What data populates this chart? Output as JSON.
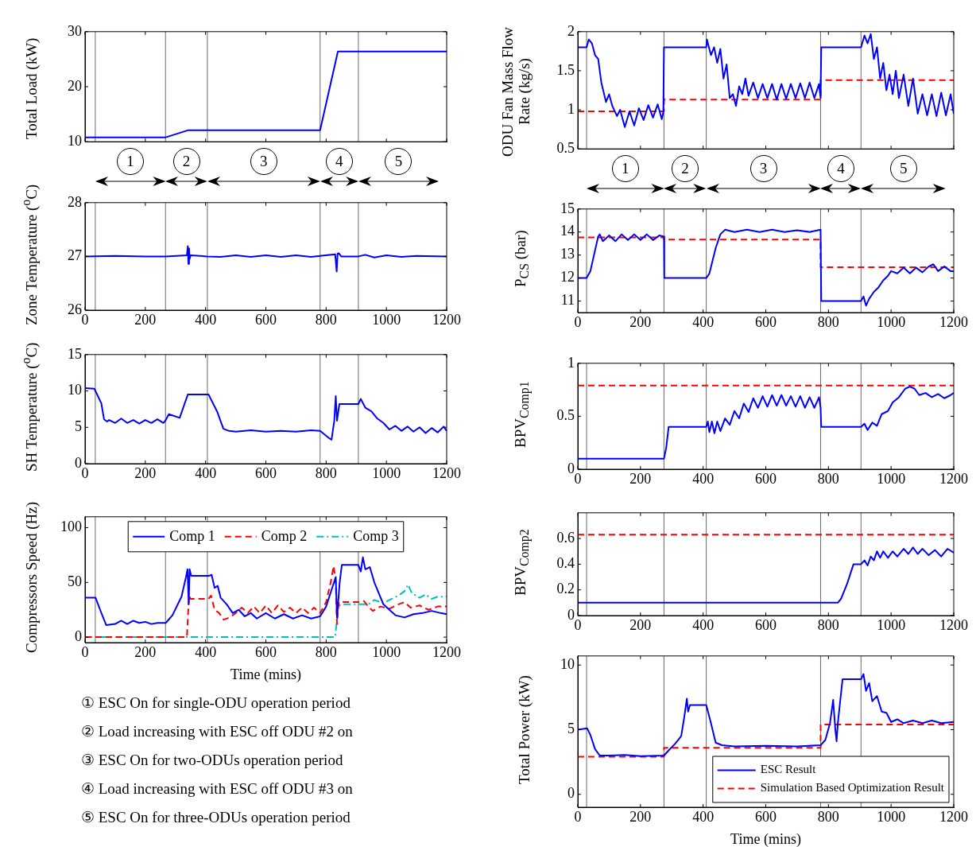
{
  "chart_data": [
    {
      "type": "line",
      "ylabel": "Total Load (kW)",
      "xlim": [
        0,
        1200
      ],
      "xticks": [
        0,
        200,
        400,
        600,
        800,
        1000,
        1200
      ],
      "ylim": [
        10,
        30
      ],
      "yticks": [
        10,
        20,
        30
      ],
      "tick_labels": "y",
      "ref_lines": [
        {
          "axis": "x",
          "value": 34
        },
        {
          "axis": "x",
          "value": 267
        },
        {
          "axis": "x",
          "value": 406
        },
        {
          "axis": "x",
          "value": 780
        },
        {
          "axis": "x",
          "value": 907
        }
      ],
      "annotations": [
        "1",
        "2",
        "3",
        "4",
        "5"
      ],
      "series": [
        {
          "color": "#0000ff",
          "line_style": "solid",
          "x": [
            0,
            268,
            343,
            780,
            839,
            1200
          ],
          "values": [
            10.8,
            10.8,
            12.1,
            12.1,
            26.4,
            26.4
          ]
        }
      ]
    },
    {
      "type": "line",
      "ylabel": "Zone Temperature ($^{o}$C)",
      "xlim": [
        0,
        1200
      ],
      "xticks": [
        0,
        200,
        400,
        600,
        800,
        1000,
        1200
      ],
      "ylim": [
        26,
        28
      ],
      "yticks": [
        26,
        27,
        28
      ],
      "ref_lines": [
        {
          "axis": "x",
          "value": 34
        },
        {
          "axis": "x",
          "value": 267
        },
        {
          "axis": "x",
          "value": 406
        },
        {
          "axis": "x",
          "value": 780
        },
        {
          "axis": "x",
          "value": 907
        }
      ],
      "series": [
        {
          "color": "#0000ff",
          "line_style": "solid",
          "x": [
            0,
            100,
            200,
            268,
            338,
            341,
            343,
            345,
            347,
            350,
            406,
            450,
            500,
            550,
            600,
            650,
            700,
            750,
            780,
            830,
            835,
            838,
            842,
            850,
            907,
            930,
            960,
            1000,
            1050,
            1100,
            1200
          ],
          "values": [
            27,
            27.01,
            27,
            27,
            27.02,
            27.19,
            26.86,
            27.15,
            26.95,
            27.02,
            27,
            26.99,
            27.02,
            26.99,
            27.02,
            26.99,
            27.02,
            26.99,
            27.01,
            27.04,
            26.72,
            27.05,
            27.06,
            27,
            27,
            27.03,
            26.98,
            27.02,
            26.99,
            27.01,
            27
          ]
        }
      ]
    },
    {
      "type": "line",
      "ylabel": "SH Temperature ($^{o}$C)",
      "xlim": [
        0,
        1200
      ],
      "xticks": [
        0,
        200,
        400,
        600,
        800,
        1000,
        1200
      ],
      "ylim": [
        0,
        15
      ],
      "yticks": [
        0,
        5,
        10,
        15
      ],
      "ref_lines": [
        {
          "axis": "x",
          "value": 34
        },
        {
          "axis": "x",
          "value": 267
        },
        {
          "axis": "x",
          "value": 406
        },
        {
          "axis": "x",
          "value": 780
        },
        {
          "axis": "x",
          "value": 907
        }
      ],
      "series": [
        {
          "color": "#0000ff",
          "line_style": "solid",
          "x": [
            0,
            31,
            54,
            63,
            73,
            80,
            100,
            120,
            140,
            160,
            180,
            200,
            220,
            240,
            260,
            268,
            278,
            314,
            341,
            410,
            439,
            459,
            478,
            500,
            550,
            600,
            650,
            700,
            750,
            780,
            810,
            818,
            827,
            832,
            836,
            844,
            907,
            915,
            930,
            950,
            970,
            990,
            1010,
            1030,
            1050,
            1070,
            1090,
            1110,
            1130,
            1150,
            1170,
            1190,
            1200
          ],
          "values": [
            10.4,
            10.3,
            8.3,
            6.1,
            5.8,
            6.0,
            5.6,
            6.2,
            5.6,
            6.0,
            5.5,
            6.0,
            5.6,
            6.1,
            5.6,
            6.0,
            6.8,
            6.3,
            9.5,
            9.5,
            7.1,
            4.8,
            4.5,
            4.4,
            4.6,
            4.4,
            4.5,
            4.4,
            4.6,
            4.5,
            3.5,
            3.3,
            5.9,
            9.3,
            5.9,
            8.2,
            8.2,
            8.9,
            7.7,
            7.2,
            6.2,
            5.6,
            4.7,
            5.2,
            4.5,
            5.1,
            4.4,
            5.0,
            4.2,
            4.9,
            4.3,
            5.1,
            4.5
          ]
        }
      ]
    },
    {
      "type": "line",
      "ylabel": "Compressors Speed (Hz)",
      "xlabel": "Time (mins)",
      "xlim": [
        0,
        1200
      ],
      "xticks": [
        0,
        200,
        400,
        600,
        800,
        1000,
        1200
      ],
      "ylim": [
        -5,
        110
      ],
      "yticks": [
        0,
        50,
        100
      ],
      "legend": "top",
      "ref_lines": [
        {
          "axis": "x",
          "value": 34
        },
        {
          "axis": "x",
          "value": 267
        },
        {
          "axis": "x",
          "value": 406
        },
        {
          "axis": "x",
          "value": 780
        },
        {
          "axis": "x",
          "value": 907
        }
      ],
      "annotations": [
        "① ESC On for single-ODU operation period",
        "② Load increasing with ESC off ODU #2 on",
        "③ ESC On for two-ODUs operation period",
        "④ Load increasing with ESC off ODU #3 on",
        "⑤ ESC On for three-ODUs operation period"
      ],
      "series": [
        {
          "name": "Comp 1",
          "color": "#0000ff",
          "line_style": "solid",
          "x": [
            0,
            35,
            50,
            70,
            100,
            120,
            140,
            160,
            180,
            200,
            220,
            240,
            268,
            290,
            320,
            335,
            340,
            344,
            347,
            352,
            410,
            420,
            430,
            440,
            450,
            470,
            490,
            510,
            530,
            550,
            570,
            600,
            630,
            660,
            690,
            720,
            750,
            780,
            800,
            820,
            832,
            836,
            845,
            852,
            907,
            915,
            922,
            930,
            945,
            960,
            975,
            990,
            1010,
            1030,
            1060,
            1090,
            1120,
            1150,
            1180,
            1200
          ],
          "values": [
            36,
            36,
            25,
            11,
            12,
            15,
            12,
            15,
            13,
            14,
            12,
            13,
            13,
            20,
            37,
            55,
            62,
            30,
            62,
            56,
            56,
            57,
            45,
            47,
            36,
            30,
            22,
            25,
            19,
            22,
            17,
            22,
            17,
            21,
            17,
            20,
            17,
            19,
            28,
            45,
            55,
            18,
            50,
            66,
            66,
            60,
            73,
            62,
            64,
            50,
            40,
            30,
            25,
            20,
            18,
            21,
            22,
            24,
            22,
            21
          ]
        },
        {
          "name": "Comp 2",
          "color": "#ff0000",
          "line_style": "dashed",
          "x": [
            0,
            338,
            345,
            350,
            410,
            418,
            430,
            445,
            460,
            480,
            500,
            520,
            540,
            560,
            580,
            600,
            620,
            640,
            660,
            680,
            700,
            720,
            740,
            760,
            780,
            800,
            815,
            825,
            832,
            836,
            842,
            907,
            925,
            940,
            955,
            980,
            1010,
            1040,
            1060,
            1080,
            1110,
            1140,
            1170,
            1200
          ],
          "values": [
            0,
            0,
            38,
            35,
            35,
            38,
            25,
            22,
            16,
            18,
            22,
            27,
            22,
            28,
            22,
            29,
            22,
            29,
            23,
            27,
            22,
            27,
            22,
            27,
            22,
            32,
            50,
            65,
            50,
            12,
            32,
            32,
            33,
            28,
            24,
            28,
            26,
            30,
            32,
            27,
            29,
            25,
            28,
            28
          ]
        },
        {
          "name": "Comp 3",
          "color": "#00bfbf",
          "line_style": "dashdot",
          "x": [
            0,
            830,
            840,
            850,
            907,
            940,
            960,
            990,
            1010,
            1040,
            1060,
            1072,
            1085,
            1110,
            1130,
            1150,
            1170,
            1200
          ],
          "values": [
            0,
            0,
            28,
            30,
            30,
            30,
            34,
            31,
            34,
            38,
            42,
            48,
            40,
            36,
            39,
            35,
            37,
            37
          ]
        }
      ]
    },
    {
      "type": "line",
      "ylabel": "ODU Fan Mass Flow Rate (kg/s)",
      "xlim": [
        0,
        1200
      ],
      "xticks": [
        0,
        200,
        400,
        600,
        800,
        1000,
        1200
      ],
      "ylim": [
        0.5,
        2
      ],
      "yticks": [
        0.5,
        1,
        1.5,
        2
      ],
      "tick_labels": "y",
      "ref_lines": [
        {
          "axis": "x",
          "value": 28
        },
        {
          "axis": "x",
          "value": 275
        },
        {
          "axis": "x",
          "value": 410
        },
        {
          "axis": "x",
          "value": 775
        },
        {
          "axis": "x",
          "value": 904
        }
      ],
      "annotations": [
        "1",
        "2",
        "3",
        "4",
        "5"
      ],
      "series": [
        {
          "color": "#0000ff",
          "line_style": "solid",
          "x": [
            0,
            28,
            35,
            45,
            55,
            65,
            75,
            90,
            100,
            110,
            125,
            135,
            150,
            165,
            180,
            195,
            210,
            225,
            240,
            255,
            268,
            273,
            275,
            410,
            412,
            425,
            435,
            445,
            455,
            465,
            475,
            485,
            495,
            505,
            515,
            525,
            535,
            545,
            560,
            575,
            590,
            605,
            620,
            635,
            650,
            665,
            680,
            695,
            710,
            725,
            740,
            755,
            770,
            775,
            777,
            904,
            915,
            925,
            935,
            945,
            955,
            965,
            975,
            985,
            995,
            1005,
            1015,
            1025,
            1040,
            1055,
            1070,
            1085,
            1100,
            1115,
            1130,
            1145,
            1160,
            1175,
            1190,
            1200
          ],
          "values": [
            1.8,
            1.8,
            1.9,
            1.85,
            1.7,
            1.65,
            1.35,
            1.1,
            1.2,
            1.05,
            0.92,
            1.0,
            0.78,
            0.98,
            0.8,
            1.02,
            0.87,
            1.06,
            0.9,
            1.07,
            0.88,
            0.97,
            1.8,
            1.8,
            1.9,
            1.7,
            1.8,
            1.6,
            1.78,
            1.4,
            1.58,
            1.15,
            1.2,
            1.05,
            1.3,
            1.2,
            1.4,
            1.18,
            1.35,
            1.15,
            1.33,
            1.15,
            1.33,
            1.13,
            1.33,
            1.14,
            1.33,
            1.15,
            1.34,
            1.15,
            1.35,
            1.15,
            1.33,
            1.15,
            1.8,
            1.8,
            1.95,
            1.85,
            1.97,
            1.65,
            1.8,
            1.4,
            1.6,
            1.25,
            1.45,
            1.2,
            1.5,
            1.15,
            1.45,
            1.05,
            1.4,
            0.95,
            1.2,
            0.93,
            1.2,
            0.92,
            1.22,
            0.93,
            1.2,
            0.95
          ]
        },
        {
          "color": "#ff0000",
          "line_style": "dashed",
          "x": [
            0,
            275,
            275,
            775,
            775,
            1200
          ],
          "values": [
            0.98,
            0.98,
            1.13,
            1.13,
            1.38,
            1.38
          ]
        }
      ]
    },
    {
      "type": "line",
      "ylabel": "P$_{CS}$ (bar)",
      "xlim": [
        0,
        1200
      ],
      "xticks": [
        0,
        200,
        400,
        600,
        800,
        1000,
        1200
      ],
      "ylim": [
        10.5,
        15
      ],
      "yticks": [
        11,
        12,
        13,
        14,
        15
      ],
      "ref_lines": [
        {
          "axis": "x",
          "value": 28
        },
        {
          "axis": "x",
          "value": 275
        },
        {
          "axis": "x",
          "value": 410
        },
        {
          "axis": "x",
          "value": 775
        },
        {
          "axis": "x",
          "value": 904
        }
      ],
      "series": [
        {
          "color": "#0000ff",
          "line_style": "solid",
          "x": [
            0,
            28,
            40,
            55,
            65,
            70,
            80,
            100,
            120,
            140,
            160,
            180,
            200,
            220,
            240,
            260,
            275,
            276,
            410,
            420,
            440,
            455,
            470,
            500,
            540,
            580,
            620,
            660,
            700,
            740,
            775,
            777,
            904,
            912,
            920,
            930,
            945,
            960,
            975,
            990,
            1000,
            1020,
            1040,
            1060,
            1080,
            1100,
            1120,
            1135,
            1150,
            1170,
            1190,
            1200
          ],
          "values": [
            12,
            12,
            12.3,
            13.2,
            13.8,
            13.9,
            13.6,
            13.85,
            13.6,
            13.9,
            13.65,
            13.9,
            13.65,
            13.9,
            13.65,
            13.85,
            13.8,
            12,
            12,
            12.2,
            13.3,
            13.9,
            14.1,
            14.0,
            14.1,
            14.0,
            14.1,
            14.0,
            14.08,
            14.0,
            14.1,
            11,
            11,
            11.2,
            10.8,
            11.1,
            11.4,
            11.6,
            11.9,
            12.1,
            12.3,
            12.2,
            12.45,
            12.2,
            12.45,
            12.25,
            12.5,
            12.6,
            12.3,
            12.5,
            12.3,
            12.3
          ]
        },
        {
          "color": "#ff0000",
          "line_style": "dashed",
          "x": [
            0,
            275,
            275,
            775,
            775,
            1200
          ],
          "values": [
            13.77,
            13.77,
            13.67,
            13.67,
            12.47,
            12.47
          ]
        }
      ]
    },
    {
      "type": "line",
      "ylabel": "BPV$_{Comp1}$",
      "xlim": [
        0,
        1200
      ],
      "xticks": [
        0,
        200,
        400,
        600,
        800,
        1000,
        1200
      ],
      "ylim": [
        0,
        1
      ],
      "yticks": [
        0,
        0.5,
        1
      ],
      "ref_lines": [
        {
          "axis": "x",
          "value": 28
        },
        {
          "axis": "x",
          "value": 275
        },
        {
          "axis": "x",
          "value": 410
        },
        {
          "axis": "x",
          "value": 775
        },
        {
          "axis": "x",
          "value": 904
        }
      ],
      "series": [
        {
          "color": "#0000ff",
          "line_style": "solid",
          "x": [
            0,
            275,
            282,
            290,
            410,
            415,
            420,
            428,
            436,
            445,
            455,
            470,
            485,
            500,
            515,
            530,
            545,
            560,
            575,
            590,
            605,
            620,
            635,
            650,
            665,
            680,
            695,
            710,
            725,
            740,
            755,
            770,
            775,
            777,
            904,
            915,
            925,
            940,
            955,
            970,
            990,
            1005,
            1025,
            1045,
            1060,
            1075,
            1090,
            1110,
            1130,
            1150,
            1170,
            1190,
            1200
          ],
          "values": [
            0.1,
            0.1,
            0.2,
            0.4,
            0.4,
            0.45,
            0.35,
            0.45,
            0.34,
            0.45,
            0.36,
            0.48,
            0.42,
            0.55,
            0.48,
            0.62,
            0.54,
            0.67,
            0.58,
            0.69,
            0.59,
            0.7,
            0.6,
            0.7,
            0.6,
            0.69,
            0.59,
            0.69,
            0.58,
            0.68,
            0.58,
            0.68,
            0.58,
            0.4,
            0.4,
            0.43,
            0.37,
            0.44,
            0.41,
            0.52,
            0.55,
            0.63,
            0.68,
            0.76,
            0.78,
            0.76,
            0.7,
            0.72,
            0.68,
            0.71,
            0.67,
            0.7,
            0.72
          ]
        },
        {
          "color": "#ff0000",
          "line_style": "dashed",
          "x": [
            0,
            1200
          ],
          "values": [
            0.79,
            0.79
          ]
        }
      ]
    },
    {
      "type": "line",
      "ylabel": "BPV$_{Comp2}$",
      "xlim": [
        0,
        1200
      ],
      "xticks": [
        0,
        200,
        400,
        600,
        800,
        1000,
        1200
      ],
      "ylim": [
        0,
        0.8
      ],
      "yticks": [
        0,
        0.2,
        0.4,
        0.6
      ],
      "ref_lines": [
        {
          "axis": "x",
          "value": 28
        },
        {
          "axis": "x",
          "value": 275
        },
        {
          "axis": "x",
          "value": 410
        },
        {
          "axis": "x",
          "value": 775
        },
        {
          "axis": "x",
          "value": 904
        }
      ],
      "series": [
        {
          "color": "#0000ff",
          "line_style": "solid",
          "x": [
            0,
            830,
            840,
            860,
            880,
            904,
            915,
            925,
            935,
            945,
            955,
            965,
            975,
            990,
            1005,
            1020,
            1040,
            1055,
            1070,
            1085,
            1100,
            1120,
            1140,
            1160,
            1180,
            1200
          ],
          "values": [
            0.1,
            0.1,
            0.13,
            0.25,
            0.4,
            0.4,
            0.43,
            0.39,
            0.46,
            0.43,
            0.5,
            0.45,
            0.5,
            0.45,
            0.5,
            0.46,
            0.52,
            0.48,
            0.53,
            0.48,
            0.52,
            0.47,
            0.51,
            0.46,
            0.52,
            0.49
          ]
        },
        {
          "color": "#ff0000",
          "line_style": "dashed",
          "x": [
            0,
            1200
          ],
          "values": [
            0.63,
            0.63
          ]
        }
      ]
    },
    {
      "type": "line",
      "ylabel": "Total Power (kW)",
      "xlabel": "Time (mins)",
      "xlim": [
        0,
        1200
      ],
      "xticks": [
        0,
        200,
        400,
        600,
        800,
        1000,
        1200
      ],
      "ylim": [
        -1,
        10.7
      ],
      "yticks": [
        0,
        5,
        10
      ],
      "legend": "bottom right",
      "ref_lines": [
        {
          "axis": "x",
          "value": 28
        },
        {
          "axis": "x",
          "value": 275
        },
        {
          "axis": "x",
          "value": 410
        },
        {
          "axis": "x",
          "value": 775
        },
        {
          "axis": "x",
          "value": 904
        }
      ],
      "series": [
        {
          "name": "ESC Result",
          "color": "#0000ff",
          "line_style": "solid",
          "x": [
            0,
            30,
            40,
            55,
            70,
            100,
            150,
            200,
            275,
            290,
            310,
            330,
            340,
            348,
            352,
            358,
            410,
            425,
            440,
            460,
            500,
            600,
            700,
            775,
            790,
            805,
            815,
            822,
            826,
            830,
            845,
            904,
            912,
            920,
            930,
            940,
            955,
            970,
            985,
            1000,
            1020,
            1040,
            1070,
            1100,
            1130,
            1160,
            1200
          ],
          "values": [
            5,
            5.1,
            4.6,
            3.5,
            3.0,
            3.0,
            3.05,
            2.95,
            3.0,
            3.4,
            3.9,
            4.5,
            6,
            7.4,
            6.4,
            6.9,
            6.9,
            5.5,
            4,
            3.8,
            3.7,
            3.75,
            3.7,
            3.8,
            4.2,
            5.5,
            7.3,
            5,
            4.1,
            5.5,
            8.9,
            8.9,
            9.3,
            8.0,
            8.6,
            7.2,
            7.6,
            6.4,
            6.3,
            5.6,
            5.8,
            5.5,
            5.7,
            5.5,
            5.7,
            5.5,
            5.6
          ]
        },
        {
          "name": "Simulation Based Optimization Result",
          "color": "#ff0000",
          "line_style": "dashed",
          "x": [
            0,
            275,
            275,
            775,
            775,
            1200
          ],
          "values": [
            2.9,
            2.9,
            3.6,
            3.6,
            5.4,
            5.4
          ]
        }
      ]
    }
  ]
}
